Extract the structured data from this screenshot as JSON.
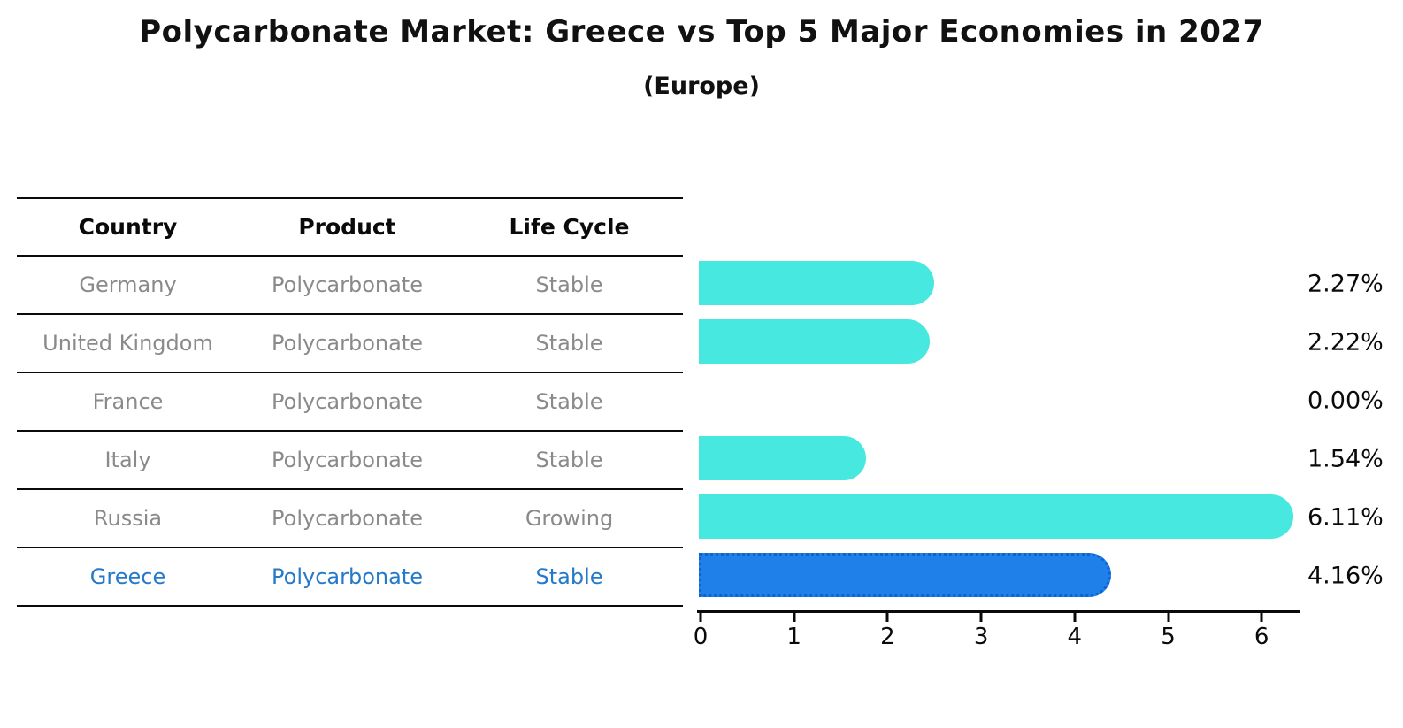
{
  "title": "Polycarbonate Market: Greece vs Top 5 Major Economies in 2027",
  "subtitle": "(Europe)",
  "table": {
    "headers": [
      "Country",
      "Product",
      "Life Cycle"
    ],
    "rows": [
      {
        "country": "Germany",
        "product": "Polycarbonate",
        "life_cycle": "Stable"
      },
      {
        "country": "United Kingdom",
        "product": "Polycarbonate",
        "life_cycle": "Stable"
      },
      {
        "country": "France",
        "product": "Polycarbonate",
        "life_cycle": "Stable"
      },
      {
        "country": "Italy",
        "product": "Polycarbonate",
        "life_cycle": "Stable"
      },
      {
        "country": "Russia",
        "product": "Polycarbonate",
        "life_cycle": "Growing"
      },
      {
        "country": "Greece",
        "product": "Polycarbonate",
        "life_cycle": "Stable"
      }
    ]
  },
  "chart_data": {
    "type": "bar",
    "orientation": "horizontal",
    "title": "Polycarbonate Market: Greece vs Top 5 Major Economies in 2027",
    "subtitle": "(Europe)",
    "categories": [
      "Germany",
      "United Kingdom",
      "France",
      "Italy",
      "Russia",
      "Greece"
    ],
    "values": [
      2.27,
      2.22,
      0.0,
      1.54,
      6.11,
      4.16
    ],
    "value_labels": [
      "2.27%",
      "2.22%",
      "0.00%",
      "1.54%",
      "6.11%",
      "4.16%"
    ],
    "highlight_index": 5,
    "x_ticks": [
      "0",
      "1",
      "2",
      "3",
      "4",
      "5",
      "6"
    ],
    "xlim": [
      0,
      6.45
    ],
    "grid": false,
    "legend": false
  },
  "colors": {
    "bar_color": "#47e8e0",
    "hl_bar_color": "#1e80e8",
    "hl_border": "#1161cf",
    "row_text": "#8a8a8a",
    "hl_text": "#2579c9"
  }
}
